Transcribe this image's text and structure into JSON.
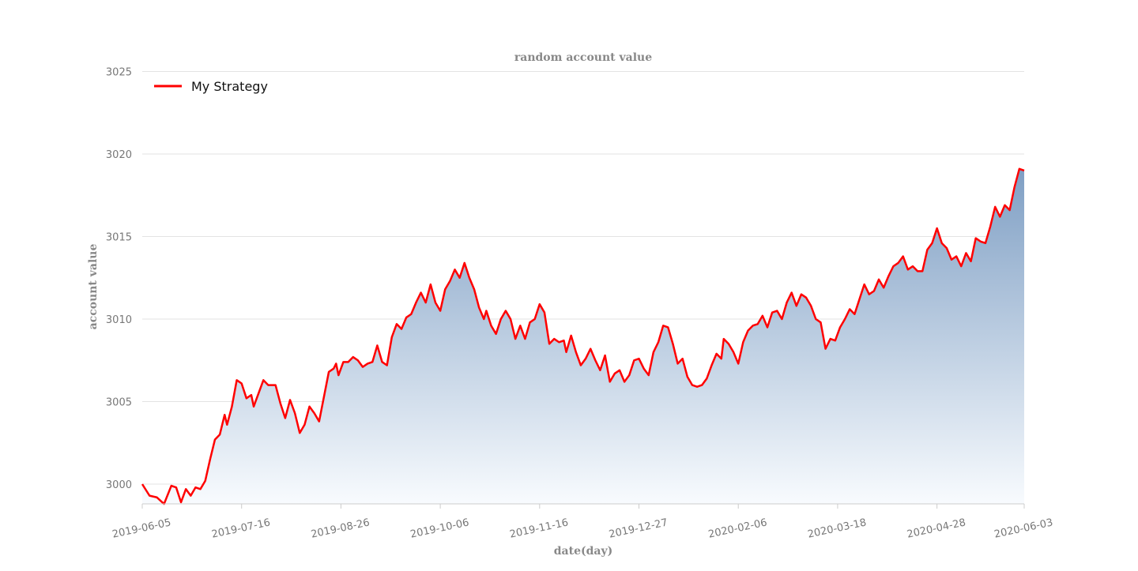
{
  "chart_data": {
    "type": "area",
    "title": "random account value",
    "xlabel": "date(day)",
    "ylabel": "account value",
    "legend": {
      "position": "top-left",
      "entries": [
        "My Strategy"
      ]
    },
    "grid": {
      "horizontal": true,
      "vertical": false
    },
    "ylim": [
      2998.8,
      3025.2
    ],
    "yticks": [
      3000,
      3005,
      3010,
      3015,
      3020,
      3025
    ],
    "xlim": [
      "2019-06-05",
      "2020-06-03"
    ],
    "xticks": [
      "2019-06-05",
      "2019-07-16",
      "2019-08-26",
      "2019-10-06",
      "2019-11-16",
      "2019-12-27",
      "2020-02-06",
      "2020-03-18",
      "2020-04-28",
      "2020-06-03"
    ],
    "colors": {
      "line": "#ff0000",
      "fill_top": "#7f9fc4",
      "fill_bottom": "#f8fbfe",
      "grid": "#e3e3e3"
    },
    "series": [
      {
        "name": "My Strategy",
        "points": [
          [
            "2019-06-05",
            3000.0
          ],
          [
            "2019-06-08",
            2999.3
          ],
          [
            "2019-06-11",
            2999.2
          ],
          [
            "2019-06-14",
            2998.8
          ],
          [
            "2019-06-17",
            2999.9
          ],
          [
            "2019-06-19",
            2999.8
          ],
          [
            "2019-06-21",
            2998.9
          ],
          [
            "2019-06-23",
            2999.7
          ],
          [
            "2019-06-25",
            2999.3
          ],
          [
            "2019-06-27",
            2999.8
          ],
          [
            "2019-06-29",
            2999.7
          ],
          [
            "2019-07-01",
            3000.2
          ],
          [
            "2019-07-03",
            3001.5
          ],
          [
            "2019-07-05",
            3002.7
          ],
          [
            "2019-07-07",
            3003.0
          ],
          [
            "2019-07-09",
            3004.2
          ],
          [
            "2019-07-10",
            3003.6
          ],
          [
            "2019-07-12",
            3004.7
          ],
          [
            "2019-07-14",
            3006.3
          ],
          [
            "2019-07-16",
            3006.1
          ],
          [
            "2019-07-18",
            3005.2
          ],
          [
            "2019-07-20",
            3005.4
          ],
          [
            "2019-07-21",
            3004.7
          ],
          [
            "2019-07-23",
            3005.5
          ],
          [
            "2019-07-25",
            3006.3
          ],
          [
            "2019-07-27",
            3006.0
          ],
          [
            "2019-07-30",
            3006.0
          ],
          [
            "2019-08-01",
            3004.9
          ],
          [
            "2019-08-03",
            3004.0
          ],
          [
            "2019-08-05",
            3005.1
          ],
          [
            "2019-08-07",
            3004.3
          ],
          [
            "2019-08-09",
            3003.1
          ],
          [
            "2019-08-11",
            3003.6
          ],
          [
            "2019-08-13",
            3004.7
          ],
          [
            "2019-08-15",
            3004.3
          ],
          [
            "2019-08-17",
            3003.8
          ],
          [
            "2019-08-19",
            3005.3
          ],
          [
            "2019-08-21",
            3006.8
          ],
          [
            "2019-08-23",
            3007.0
          ],
          [
            "2019-08-24",
            3007.3
          ],
          [
            "2019-08-25",
            3006.6
          ],
          [
            "2019-08-27",
            3007.4
          ],
          [
            "2019-08-29",
            3007.4
          ],
          [
            "2019-08-31",
            3007.7
          ],
          [
            "2019-09-02",
            3007.5
          ],
          [
            "2019-09-04",
            3007.1
          ],
          [
            "2019-09-06",
            3007.3
          ],
          [
            "2019-09-08",
            3007.4
          ],
          [
            "2019-09-10",
            3008.4
          ],
          [
            "2019-09-12",
            3007.4
          ],
          [
            "2019-09-14",
            3007.2
          ],
          [
            "2019-09-16",
            3008.9
          ],
          [
            "2019-09-18",
            3009.7
          ],
          [
            "2019-09-20",
            3009.4
          ],
          [
            "2019-09-22",
            3010.1
          ],
          [
            "2019-09-24",
            3010.3
          ],
          [
            "2019-09-26",
            3011.0
          ],
          [
            "2019-09-28",
            3011.6
          ],
          [
            "2019-09-30",
            3011.0
          ],
          [
            "2019-10-02",
            3012.1
          ],
          [
            "2019-10-04",
            3011.0
          ],
          [
            "2019-10-06",
            3010.5
          ],
          [
            "2019-10-08",
            3011.8
          ],
          [
            "2019-10-10",
            3012.3
          ],
          [
            "2019-10-12",
            3013.0
          ],
          [
            "2019-10-14",
            3012.5
          ],
          [
            "2019-10-16",
            3013.4
          ],
          [
            "2019-10-18",
            3012.5
          ],
          [
            "2019-10-20",
            3011.8
          ],
          [
            "2019-10-22",
            3010.7
          ],
          [
            "2019-10-24",
            3010.0
          ],
          [
            "2019-10-25",
            3010.5
          ],
          [
            "2019-10-27",
            3009.6
          ],
          [
            "2019-10-29",
            3009.1
          ],
          [
            "2019-10-31",
            3010.0
          ],
          [
            "2019-11-02",
            3010.5
          ],
          [
            "2019-11-04",
            3010.0
          ],
          [
            "2019-11-06",
            3008.8
          ],
          [
            "2019-11-08",
            3009.6
          ],
          [
            "2019-11-10",
            3008.8
          ],
          [
            "2019-11-12",
            3009.8
          ],
          [
            "2019-11-14",
            3010.0
          ],
          [
            "2019-11-16",
            3010.9
          ],
          [
            "2019-11-18",
            3010.4
          ],
          [
            "2019-11-20",
            3008.5
          ],
          [
            "2019-11-22",
            3008.8
          ],
          [
            "2019-11-24",
            3008.6
          ],
          [
            "2019-11-26",
            3008.7
          ],
          [
            "2019-11-27",
            3008.0
          ],
          [
            "2019-11-29",
            3009.0
          ],
          [
            "2019-12-01",
            3008.0
          ],
          [
            "2019-12-03",
            3007.2
          ],
          [
            "2019-12-05",
            3007.6
          ],
          [
            "2019-12-07",
            3008.2
          ],
          [
            "2019-12-09",
            3007.5
          ],
          [
            "2019-12-11",
            3006.9
          ],
          [
            "2019-12-13",
            3007.8
          ],
          [
            "2019-12-15",
            3006.2
          ],
          [
            "2019-12-17",
            3006.7
          ],
          [
            "2019-12-19",
            3006.9
          ],
          [
            "2019-12-21",
            3006.2
          ],
          [
            "2019-12-23",
            3006.6
          ],
          [
            "2019-12-25",
            3007.5
          ],
          [
            "2019-12-27",
            3007.6
          ],
          [
            "2019-12-29",
            3007.0
          ],
          [
            "2019-12-31",
            3006.6
          ],
          [
            "2020-01-02",
            3008.0
          ],
          [
            "2020-01-04",
            3008.6
          ],
          [
            "2020-01-06",
            3009.6
          ],
          [
            "2020-01-08",
            3009.5
          ],
          [
            "2020-01-10",
            3008.5
          ],
          [
            "2020-01-12",
            3007.3
          ],
          [
            "2020-01-14",
            3007.6
          ],
          [
            "2020-01-16",
            3006.5
          ],
          [
            "2020-01-18",
            3006.0
          ],
          [
            "2020-01-20",
            3005.9
          ],
          [
            "2020-01-22",
            3006.0
          ],
          [
            "2020-01-24",
            3006.4
          ],
          [
            "2020-01-26",
            3007.2
          ],
          [
            "2020-01-28",
            3007.9
          ],
          [
            "2020-01-30",
            3007.6
          ],
          [
            "2020-01-31",
            3008.8
          ],
          [
            "2020-02-02",
            3008.5
          ],
          [
            "2020-02-04",
            3008.0
          ],
          [
            "2020-02-06",
            3007.3
          ],
          [
            "2020-02-08",
            3008.6
          ],
          [
            "2020-02-10",
            3009.3
          ],
          [
            "2020-02-12",
            3009.6
          ],
          [
            "2020-02-14",
            3009.7
          ],
          [
            "2020-02-16",
            3010.2
          ],
          [
            "2020-02-18",
            3009.5
          ],
          [
            "2020-02-20",
            3010.4
          ],
          [
            "2020-02-22",
            3010.5
          ],
          [
            "2020-02-24",
            3010.0
          ],
          [
            "2020-02-26",
            3011.0
          ],
          [
            "2020-02-28",
            3011.6
          ],
          [
            "2020-03-01",
            3010.8
          ],
          [
            "2020-03-03",
            3011.5
          ],
          [
            "2020-03-05",
            3011.3
          ],
          [
            "2020-03-07",
            3010.8
          ],
          [
            "2020-03-09",
            3010.0
          ],
          [
            "2020-03-11",
            3009.8
          ],
          [
            "2020-03-13",
            3008.2
          ],
          [
            "2020-03-15",
            3008.8
          ],
          [
            "2020-03-17",
            3008.7
          ],
          [
            "2020-03-19",
            3009.5
          ],
          [
            "2020-03-21",
            3010.0
          ],
          [
            "2020-03-23",
            3010.6
          ],
          [
            "2020-03-25",
            3010.3
          ],
          [
            "2020-03-27",
            3011.2
          ],
          [
            "2020-03-29",
            3012.1
          ],
          [
            "2020-03-31",
            3011.5
          ],
          [
            "2020-04-02",
            3011.7
          ],
          [
            "2020-04-04",
            3012.4
          ],
          [
            "2020-04-06",
            3011.9
          ],
          [
            "2020-04-08",
            3012.6
          ],
          [
            "2020-04-10",
            3013.2
          ],
          [
            "2020-04-12",
            3013.4
          ],
          [
            "2020-04-14",
            3013.8
          ],
          [
            "2020-04-16",
            3013.0
          ],
          [
            "2020-04-18",
            3013.2
          ],
          [
            "2020-04-20",
            3012.9
          ],
          [
            "2020-04-22",
            3012.9
          ],
          [
            "2020-04-24",
            3014.2
          ],
          [
            "2020-04-26",
            3014.6
          ],
          [
            "2020-04-28",
            3015.5
          ],
          [
            "2020-04-30",
            3014.6
          ],
          [
            "2020-05-02",
            3014.3
          ],
          [
            "2020-05-04",
            3013.6
          ],
          [
            "2020-05-06",
            3013.8
          ],
          [
            "2020-05-08",
            3013.2
          ],
          [
            "2020-05-10",
            3014.0
          ],
          [
            "2020-05-12",
            3013.5
          ],
          [
            "2020-05-14",
            3014.9
          ],
          [
            "2020-05-16",
            3014.7
          ],
          [
            "2020-05-18",
            3014.6
          ],
          [
            "2020-05-20",
            3015.6
          ],
          [
            "2020-05-22",
            3016.8
          ],
          [
            "2020-05-24",
            3016.2
          ],
          [
            "2020-05-26",
            3016.9
          ],
          [
            "2020-05-28",
            3016.6
          ],
          [
            "2020-05-30",
            3018.0
          ],
          [
            "2020-06-01",
            3019.1
          ],
          [
            "2020-06-03",
            3019.0
          ]
        ]
      }
    ]
  }
}
